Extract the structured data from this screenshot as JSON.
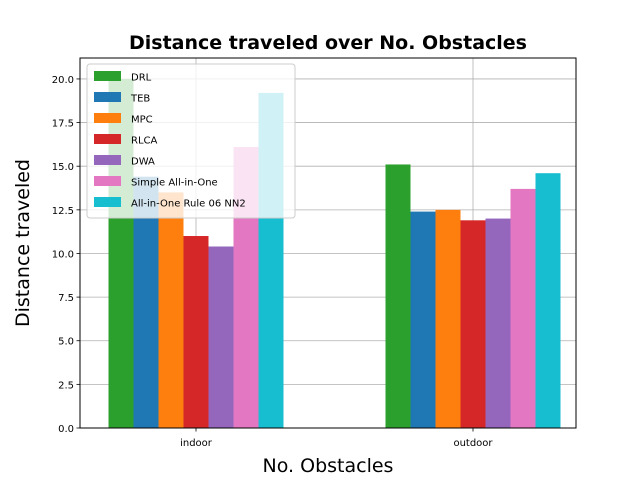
{
  "chart_data": {
    "type": "bar",
    "title": "Distance traveled over No. Obstacles",
    "xlabel": "No. Obstacles",
    "ylabel": "Distance traveled",
    "categories": [
      "indoor",
      "outdoor"
    ],
    "ylim": [
      0,
      21.2
    ],
    "yticks": [
      "0.0",
      "2.5",
      "5.0",
      "7.5",
      "10.0",
      "12.5",
      "15.0",
      "17.5",
      "20.0"
    ],
    "grid": true,
    "legend_position": "upper left",
    "series": [
      {
        "name": "DRL",
        "color": "#2ca02c",
        "values": [
          20.0,
          15.1
        ]
      },
      {
        "name": "TEB",
        "color": "#1f77b4",
        "values": [
          14.4,
          12.4
        ]
      },
      {
        "name": "MPC",
        "color": "#ff7f0e",
        "values": [
          13.5,
          12.5
        ]
      },
      {
        "name": "RLCA",
        "color": "#d62728",
        "values": [
          11.0,
          11.9
        ]
      },
      {
        "name": "DWA",
        "color": "#9467bd",
        "values": [
          10.4,
          12.0
        ]
      },
      {
        "name": "Simple All-in-One",
        "color": "#e377c2",
        "values": [
          16.1,
          13.7
        ]
      },
      {
        "name": "All-in-One Rule 06 NN2",
        "color": "#17becf",
        "values": [
          19.2,
          14.6
        ]
      }
    ]
  }
}
